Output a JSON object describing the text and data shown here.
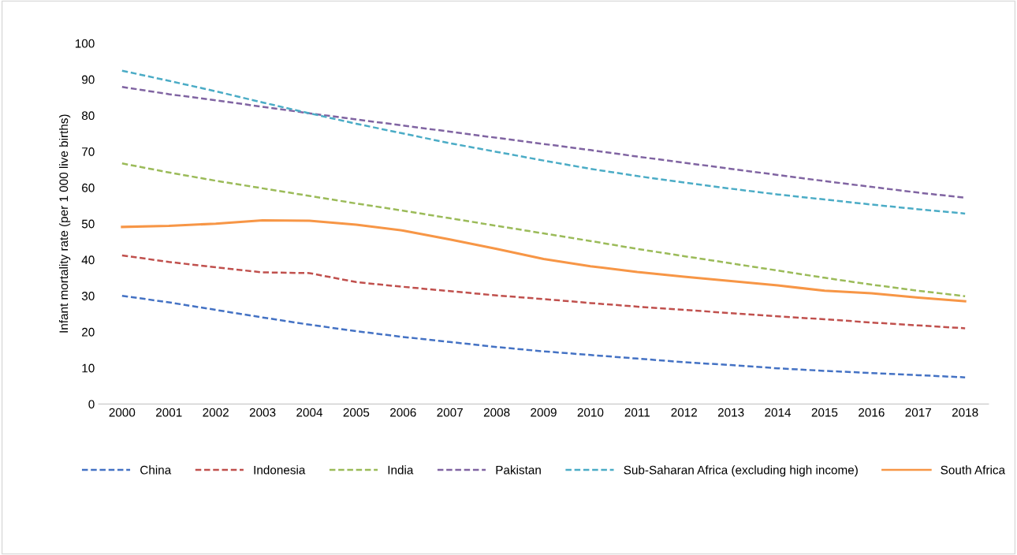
{
  "chart_data": {
    "type": "line",
    "ylabel": "Infant mortality rate (per 1 000 live births)",
    "categories": [
      "2000",
      "2001",
      "2002",
      "2003",
      "2004",
      "2005",
      "2006",
      "2007",
      "2008",
      "2009",
      "2010",
      "2011",
      "2012",
      "2013",
      "2014",
      "2015",
      "2016",
      "2017",
      "2018"
    ],
    "series": [
      {
        "name": "China",
        "color": "#4472c4",
        "line_style": "dashed",
        "values": [
          30.0,
          28.2,
          26.1,
          24.0,
          22.0,
          20.2,
          18.6,
          17.2,
          15.8,
          14.6,
          13.6,
          12.6,
          11.6,
          10.8,
          9.9,
          9.2,
          8.6,
          8.0,
          7.4
        ]
      },
      {
        "name": "Indonesia",
        "color": "#c0504d",
        "line_style": "dashed",
        "values": [
          41.2,
          39.4,
          37.9,
          36.5,
          36.3,
          33.8,
          32.5,
          31.3,
          30.1,
          29.1,
          28.0,
          27.0,
          26.1,
          25.2,
          24.3,
          23.5,
          22.6,
          21.8,
          21.0
        ]
      },
      {
        "name": "India",
        "color": "#9bbb59",
        "line_style": "dashed",
        "values": [
          66.7,
          64.2,
          61.9,
          59.8,
          57.7,
          55.6,
          53.6,
          51.5,
          49.4,
          47.3,
          45.2,
          43.0,
          41.0,
          39.0,
          37.0,
          35.0,
          33.1,
          31.4,
          29.9
        ]
      },
      {
        "name": "Pakistan",
        "color": "#8064a2",
        "line_style": "dashed",
        "values": [
          87.9,
          85.9,
          84.2,
          82.4,
          80.6,
          78.9,
          77.2,
          75.5,
          73.8,
          72.1,
          70.4,
          68.6,
          66.9,
          65.2,
          63.5,
          61.8,
          60.2,
          58.6,
          57.2
        ]
      },
      {
        "name": "Sub-Saharan Africa (excluding high income)",
        "color": "#4bacc6",
        "line_style": "dashed",
        "values": [
          92.4,
          89.6,
          86.7,
          83.6,
          80.6,
          77.7,
          75.0,
          72.3,
          69.9,
          67.5,
          65.2,
          63.2,
          61.4,
          59.7,
          58.1,
          56.7,
          55.3,
          54.0,
          52.8
        ]
      },
      {
        "name": "South Africa",
        "color": "#f79646",
        "line_style": "solid",
        "values": [
          49.1,
          49.4,
          50.0,
          50.9,
          50.8,
          49.7,
          48.1,
          45.6,
          43.0,
          40.2,
          38.2,
          36.6,
          35.3,
          34.1,
          32.9,
          31.4,
          30.7,
          29.5,
          28.5
        ]
      }
    ],
    "ylim": [
      0,
      100
    ],
    "yticks": [
      0,
      10,
      20,
      30,
      40,
      50,
      60,
      70,
      80,
      90,
      100
    ],
    "grid": false,
    "legend": "bottom"
  }
}
